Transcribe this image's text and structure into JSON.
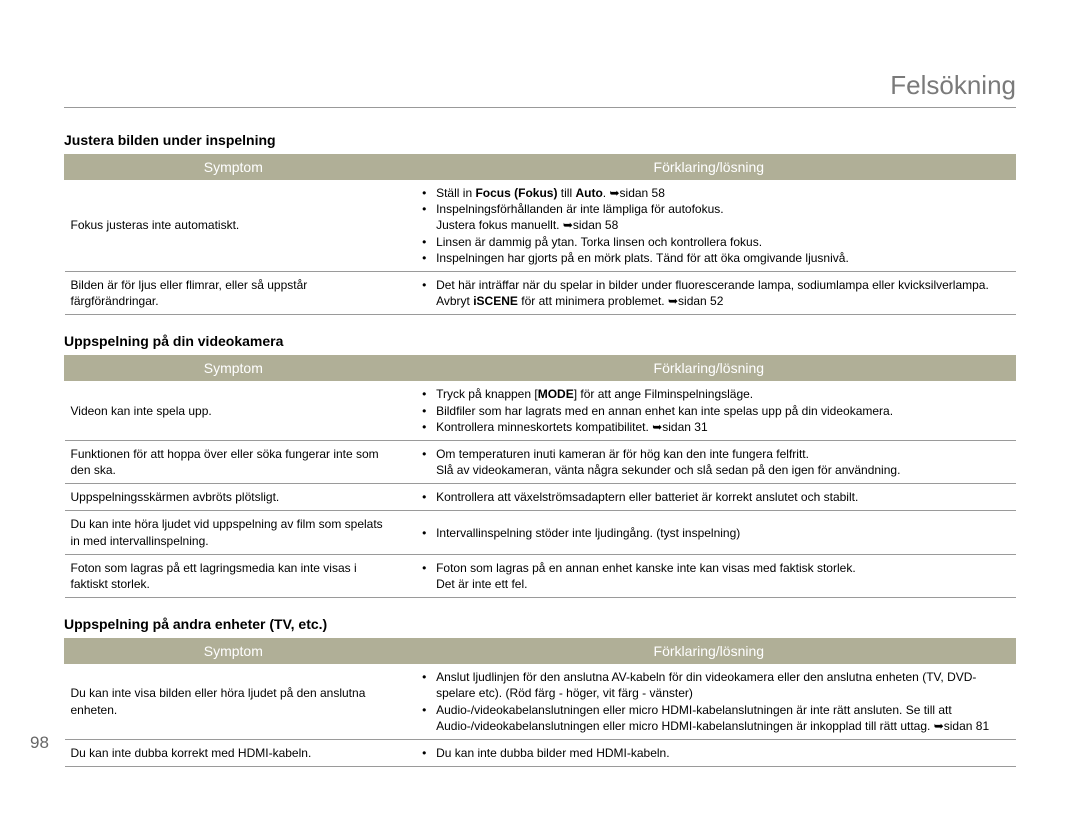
{
  "page_title": "Felsökning",
  "page_number": "98",
  "colors": {
    "header_bg": "#b0af97",
    "header_text": "#ffffff",
    "rule": "#9a9a9a",
    "title_color": "#7a7a7a"
  },
  "sections": [
    {
      "heading": "Justera bilden under inspelning",
      "col_symptom": "Symptom",
      "col_solution": "Förklaring/lösning",
      "rows": [
        {
          "symptom": "Fokus justeras inte automatiskt.",
          "solution_html": "<ul class='bullets'><li>Ställ in <span class='b'>Focus (Fokus)</span> till <span class='b'>Auto</span>. <span class='arrow'>➥</span>sidan 58</li><li>Inspelningsförhållanden är inte lämpliga för autofokus.<br>Justera fokus manuellt. <span class='arrow'>➥</span>sidan 58</li><li>Linsen är dammig på ytan. Torka linsen och kontrollera fokus.</li><li>Inspelningen har gjorts på en mörk plats. Tänd för att öka omgivande ljusnivå.</li></ul>"
        },
        {
          "symptom": "Bilden är för ljus eller flimrar, eller så uppstår färgförändringar.",
          "solution_html": "<ul class='bullets'><li>Det här inträffar när du spelar in bilder under fluorescerande lampa, sodiumlampa eller kvicksilverlampa. Avbryt <span class='b'>iSCENE</span> för att minimera problemet. <span class='arrow'>➥</span>sidan 52</li></ul>"
        }
      ]
    },
    {
      "heading": "Uppspelning på din videokamera",
      "col_symptom": "Symptom",
      "col_solution": "Förklaring/lösning",
      "rows": [
        {
          "symptom": "Videon kan inte spela upp.",
          "solution_html": "<ul class='bullets'><li>Tryck på knappen [<span class='b'>MODE</span>] för att ange Filminspelningsläge.</li><li>Bildfiler som har lagrats med en annan enhet kan inte spelas upp på din videokamera.</li><li>Kontrollera minneskortets kompatibilitet. <span class='arrow'>➥</span>sidan 31</li></ul>"
        },
        {
          "symptom": "Funktionen för att hoppa över eller söka fungerar inte som den ska.",
          "solution_html": "<ul class='bullets'><li>Om temperaturen inuti kameran är för hög kan den inte fungera felfritt.<br>Slå av videokameran, vänta några sekunder och slå sedan på den igen för användning.</li></ul>"
        },
        {
          "symptom": "Uppspelningsskärmen avbröts plötsligt.",
          "solution_html": "<ul class='bullets'><li>Kontrollera att växelströmsadaptern eller batteriet är korrekt anslutet och stabilt.</li></ul>"
        },
        {
          "symptom": "Du kan inte höra ljudet vid uppspelning av film som spelats in med intervallinspelning.",
          "solution_html": "<ul class='bullets'><li>Intervallinspelning stöder inte ljudingång. (tyst inspelning)</li></ul>"
        },
        {
          "symptom": "Foton som lagras på ett lagringsmedia kan inte visas i faktiskt storlek.",
          "solution_html": "<ul class='bullets'><li>Foton som lagras på en annan enhet kanske inte kan visas med faktisk storlek.<br>Det är inte ett fel.</li></ul>"
        }
      ]
    },
    {
      "heading": "Uppspelning på andra enheter (TV, etc.)",
      "col_symptom": "Symptom",
      "col_solution": "Förklaring/lösning",
      "rows": [
        {
          "symptom": "Du kan inte visa bilden eller höra ljudet på den anslutna enheten.",
          "solution_html": "<ul class='bullets'><li>Anslut ljudlinjen för den anslutna AV-kabeln för din videokamera eller den anslutna enheten (TV, DVD-spelare etc). (Röd färg - höger, vit färg - vänster)</li><li>Audio-/videokabelanslutningen eller micro HDMI-kabelanslutningen är inte rätt ansluten. Se till att Audio-/videokabelanslutningen eller micro HDMI-kabelanslutningen är inkopplad till rätt uttag. <span class='arrow'>➥</span>sidan 81</li></ul>"
        },
        {
          "symptom": "Du kan inte dubba korrekt med HDMI-kabeln.",
          "solution_html": "<ul class='bullets'><li>Du kan inte dubba bilder med HDMI-kabeln.</li></ul>"
        }
      ]
    }
  ]
}
